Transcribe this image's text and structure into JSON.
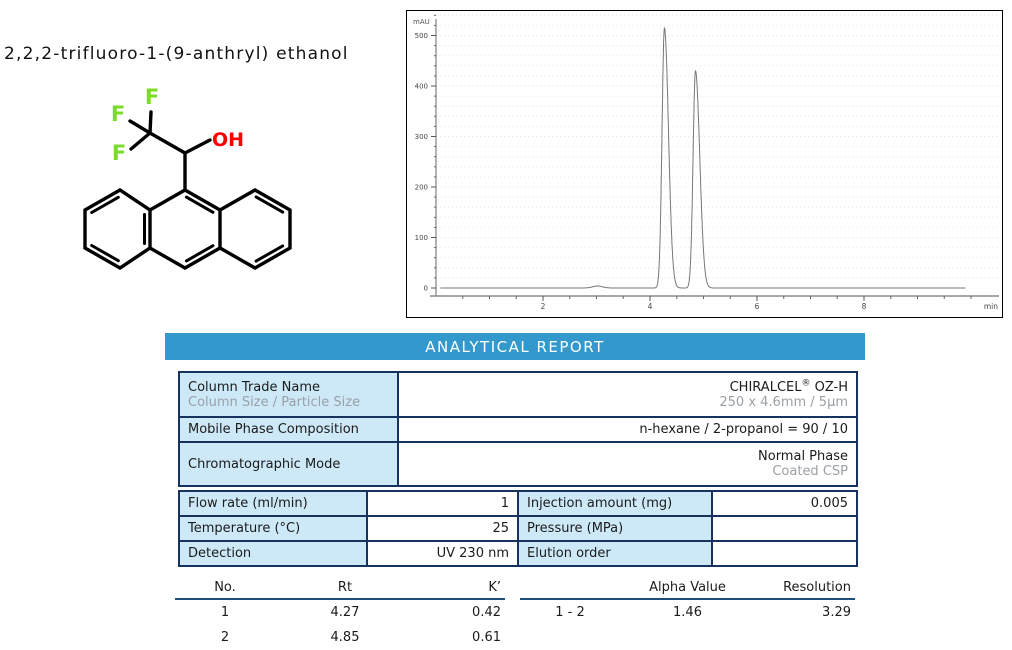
{
  "compound": {
    "name": "2,2,2-trifluoro-1-(9-anthryl) ethanol",
    "atoms": {
      "f1": "F",
      "f2": "F",
      "f3": "F",
      "oh": "OH"
    },
    "colors": {
      "fluorine": "#7CDB28",
      "hydroxyl": "#FF0000",
      "bond": "#000000"
    }
  },
  "chart_data": {
    "type": "line",
    "title": "HPLC chromatogram",
    "y_axis_label": "mAU",
    "x_axis_label": "min",
    "xlim": [
      0,
      10.4
    ],
    "ylim": [
      -25,
      560
    ],
    "x_major_ticks": [
      2,
      4,
      6,
      8
    ],
    "x_minor_tick_step": 0.5,
    "y_major_ticks": [
      0,
      100,
      200,
      300,
      400,
      500
    ],
    "y_minor_tick_step": 20,
    "grid": "dotted-horizontal",
    "legend": "none",
    "peaks": [
      {
        "no": 1,
        "rt": 4.27,
        "height_mau": 515,
        "sigma_left": 0.045,
        "sigma_right": 0.075
      },
      {
        "no": 2,
        "rt": 4.85,
        "height_mau": 430,
        "sigma_left": 0.045,
        "sigma_right": 0.08
      }
    ],
    "baseline_noise": [
      {
        "t": 3.02,
        "height_mau": 4,
        "sigma": 0.09
      }
    ],
    "trace_color": "#777777",
    "axis_color": "#8a8a8a",
    "grid_color": "#e4e4e4"
  },
  "report": {
    "title": "ANALYTICAL REPORT",
    "colors": {
      "header_bg": "#3399CC",
      "header_text": "#FFFFFF",
      "cell_bg": "#CDE9F8",
      "border": "#15335E",
      "secondary_text": "#9AA0A6",
      "rule": "#1F4E79"
    },
    "info": [
      {
        "label": "Column Trade Name",
        "sublabel": "Column Size / Particle Size",
        "value_brand": "CHIRALCEL",
        "value_reg": "®",
        "value_model": " OZ-H",
        "subvalue": "250 x 4.6mm / 5µm"
      },
      {
        "label": "Mobile Phase Composition",
        "value": "n-hexane / 2-propanol = 90 / 10"
      },
      {
        "label": "Chromatographic Mode",
        "value": "Normal Phase",
        "subvalue": "Coated CSP"
      }
    ],
    "params": [
      [
        "Flow rate (ml/min)",
        "1",
        "Injection amount (mg)",
        "0.005"
      ],
      [
        "Temperature (°C)",
        "25",
        "Pressure (MPa)",
        ""
      ],
      [
        "Detection",
        "UV 230 nm",
        "Elution order",
        ""
      ]
    ],
    "results_left": {
      "headers": [
        "No.",
        "Rt",
        "K’"
      ],
      "rows": [
        [
          "1",
          "4.27",
          "0.42"
        ],
        [
          "2",
          "4.85",
          "0.61"
        ]
      ]
    },
    "results_right": {
      "headers": [
        "Alpha Value",
        "Resolution"
      ],
      "rows": [
        [
          "1 - 2",
          "1.46",
          "3.29"
        ]
      ]
    }
  }
}
